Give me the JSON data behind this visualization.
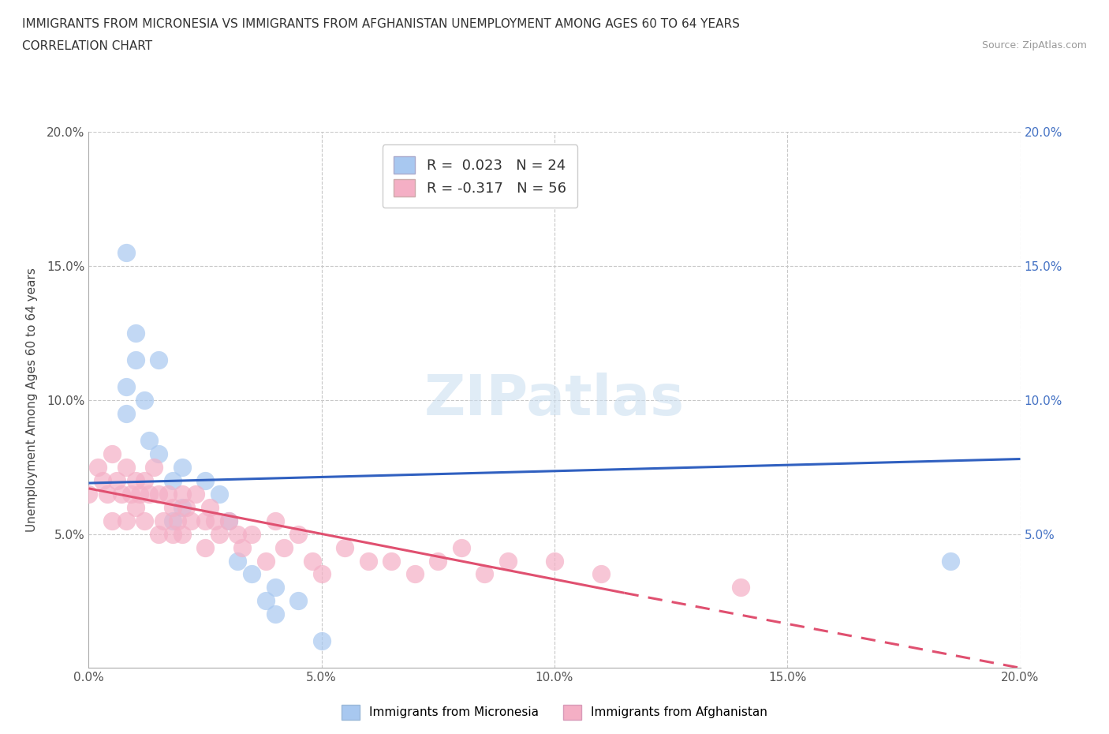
{
  "title_line1": "IMMIGRANTS FROM MICRONESIA VS IMMIGRANTS FROM AFGHANISTAN UNEMPLOYMENT AMONG AGES 60 TO 64 YEARS",
  "title_line2": "CORRELATION CHART",
  "source_text": "Source: ZipAtlas.com",
  "ylabel": "Unemployment Among Ages 60 to 64 years",
  "legend_label1": "Immigrants from Micronesia",
  "legend_label2": "Immigrants from Afghanistan",
  "R1": 0.023,
  "N1": 24,
  "R2": -0.317,
  "N2": 56,
  "color1": "#a8c8f0",
  "color2": "#f4afc5",
  "line_color1": "#3060c0",
  "line_color2": "#e05070",
  "xlim": [
    0.0,
    0.2
  ],
  "ylim": [
    0.0,
    0.2
  ],
  "xticks": [
    0.0,
    0.05,
    0.1,
    0.15,
    0.2
  ],
  "yticks": [
    0.0,
    0.05,
    0.1,
    0.15,
    0.2
  ],
  "micronesia_x": [
    0.008,
    0.008,
    0.008,
    0.01,
    0.01,
    0.012,
    0.013,
    0.015,
    0.015,
    0.018,
    0.018,
    0.02,
    0.02,
    0.025,
    0.028,
    0.03,
    0.032,
    0.035,
    0.038,
    0.04,
    0.04,
    0.045,
    0.05,
    0.185
  ],
  "micronesia_y": [
    0.155,
    0.105,
    0.095,
    0.125,
    0.115,
    0.1,
    0.085,
    0.115,
    0.08,
    0.07,
    0.055,
    0.075,
    0.06,
    0.07,
    0.065,
    0.055,
    0.04,
    0.035,
    0.025,
    0.03,
    0.02,
    0.025,
    0.01,
    0.04
  ],
  "afghanistan_x": [
    0.0,
    0.002,
    0.003,
    0.004,
    0.005,
    0.005,
    0.006,
    0.007,
    0.008,
    0.008,
    0.009,
    0.01,
    0.01,
    0.011,
    0.012,
    0.012,
    0.013,
    0.014,
    0.015,
    0.015,
    0.016,
    0.017,
    0.018,
    0.018,
    0.019,
    0.02,
    0.02,
    0.021,
    0.022,
    0.023,
    0.025,
    0.025,
    0.026,
    0.027,
    0.028,
    0.03,
    0.032,
    0.033,
    0.035,
    0.038,
    0.04,
    0.042,
    0.045,
    0.048,
    0.05,
    0.055,
    0.06,
    0.065,
    0.07,
    0.075,
    0.08,
    0.085,
    0.09,
    0.1,
    0.11,
    0.14
  ],
  "afghanistan_y": [
    0.065,
    0.075,
    0.07,
    0.065,
    0.08,
    0.055,
    0.07,
    0.065,
    0.075,
    0.055,
    0.065,
    0.06,
    0.07,
    0.065,
    0.07,
    0.055,
    0.065,
    0.075,
    0.065,
    0.05,
    0.055,
    0.065,
    0.06,
    0.05,
    0.055,
    0.065,
    0.05,
    0.06,
    0.055,
    0.065,
    0.055,
    0.045,
    0.06,
    0.055,
    0.05,
    0.055,
    0.05,
    0.045,
    0.05,
    0.04,
    0.055,
    0.045,
    0.05,
    0.04,
    0.035,
    0.045,
    0.04,
    0.04,
    0.035,
    0.04,
    0.045,
    0.035,
    0.04,
    0.04,
    0.035,
    0.03
  ],
  "mic_trend_x0": 0.0,
  "mic_trend_x1": 0.2,
  "mic_trend_y0": 0.069,
  "mic_trend_y1": 0.078,
  "afg_trend_solid_x0": 0.0,
  "afg_trend_solid_x1": 0.115,
  "afg_trend_y0": 0.067,
  "afg_trend_y1": 0.028,
  "afg_trend_dash_x0": 0.115,
  "afg_trend_dash_x1": 0.2,
  "afg_trend_dash_y0": 0.028,
  "afg_trend_dash_y1": 0.0,
  "watermark_text": "ZIPatlas",
  "background_color": "#ffffff",
  "grid_color": "#c8c8c8"
}
